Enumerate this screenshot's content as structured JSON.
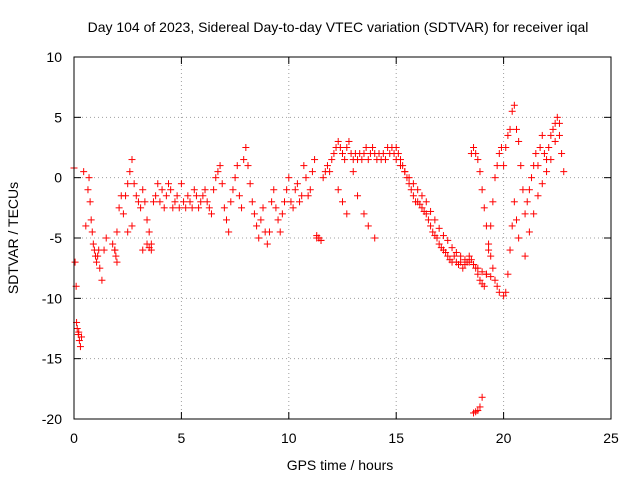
{
  "chart_data": {
    "type": "scatter",
    "title": "Day 104 of 2023, Sidereal Day-to-day VTEC variation (SDTVAR) for receiver iqal",
    "xlabel": "GPS time / hours",
    "ylabel": "SDTVAR / TECUs",
    "xlim": [
      0,
      25
    ],
    "ylim": [
      -20,
      10
    ],
    "xticks": [
      0,
      5,
      10,
      15,
      20,
      25
    ],
    "xtick_labels": [
      "0",
      "5",
      "10",
      "15",
      "20",
      "25"
    ],
    "yticks": [
      -20,
      -15,
      -10,
      -5,
      0,
      5,
      10
    ],
    "ytick_labels": [
      "-20",
      "-15",
      "-10",
      "-5",
      "0",
      "5",
      "10"
    ],
    "grid": true,
    "marker": "+",
    "series": [
      {
        "name": "SDTVAR",
        "color": "#ff0000",
        "x": [
          0.0,
          0.05,
          0.1,
          0.12,
          0.15,
          0.2,
          0.22,
          0.25,
          0.3,
          0.35,
          0.45,
          0.55,
          0.65,
          0.7,
          0.75,
          0.8,
          0.85,
          0.9,
          0.95,
          1.0,
          1.05,
          1.1,
          1.15,
          1.2,
          1.3,
          1.4,
          1.5,
          1.8,
          1.9,
          2.0,
          2.1,
          2.2,
          2.3,
          2.4,
          2.5,
          2.6,
          2.7,
          2.8,
          2.9,
          3.0,
          3.1,
          3.2,
          3.3,
          3.4,
          3.5,
          3.6,
          3.7,
          3.8,
          3.9,
          4.0,
          4.1,
          4.2,
          4.3,
          4.4,
          4.5,
          4.6,
          4.7,
          4.8,
          4.9,
          5.0,
          5.1,
          5.2,
          5.3,
          5.4,
          5.5,
          5.6,
          5.7,
          5.8,
          5.9,
          6.0,
          6.1,
          6.2,
          6.3,
          6.4,
          6.5,
          6.6,
          6.7,
          6.8,
          6.9,
          7.0,
          7.1,
          7.2,
          7.3,
          7.4,
          7.5,
          7.6,
          7.7,
          7.8,
          7.9,
          8.0,
          8.1,
          8.2,
          8.3,
          8.4,
          8.5,
          8.6,
          8.7,
          8.8,
          8.9,
          9.0,
          9.1,
          9.2,
          9.3,
          9.4,
          9.5,
          9.6,
          9.7,
          9.8,
          9.9,
          10.0,
          10.1,
          10.2,
          10.3,
          10.4,
          10.5,
          10.6,
          10.7,
          10.8,
          10.9,
          11.0,
          11.1,
          11.2,
          11.3,
          11.4,
          11.5,
          11.6,
          11.7,
          11.8,
          11.9,
          12.0,
          12.1,
          12.2,
          12.3,
          12.4,
          12.5,
          12.6,
          12.7,
          12.8,
          12.9,
          13.0,
          13.1,
          13.2,
          13.3,
          13.4,
          13.5,
          13.6,
          13.7,
          13.8,
          13.9,
          14.0,
          14.1,
          14.2,
          14.3,
          14.4,
          14.5,
          14.6,
          14.7,
          14.8,
          14.9,
          15.0,
          15.1,
          15.2,
          15.3,
          15.4,
          15.5,
          15.6,
          15.7,
          15.8,
          15.9,
          16.0,
          16.1,
          16.2,
          16.3,
          16.4,
          16.5,
          16.6,
          16.7,
          16.8,
          16.9,
          17.0,
          17.1,
          17.2,
          17.3,
          17.4,
          17.5,
          17.6,
          17.7,
          17.8,
          17.9,
          18.0,
          18.1,
          18.2,
          18.3,
          18.4,
          18.5,
          18.6,
          18.7,
          18.8,
          18.9,
          19.0,
          19.1,
          19.2,
          19.3,
          19.4,
          19.5,
          19.6,
          19.7,
          19.8,
          19.9,
          20.0,
          20.1,
          20.2,
          20.3,
          20.4,
          20.5,
          20.6,
          20.7,
          20.8,
          20.9,
          21.0,
          21.1,
          21.2,
          21.3,
          21.4,
          21.5,
          21.6,
          21.7,
          21.8,
          21.9,
          22.0,
          22.1,
          22.2,
          22.3,
          22.4,
          22.5,
          22.6,
          22.7,
          22.8,
          15.0,
          15.2,
          15.4,
          15.6,
          15.8,
          16.0,
          16.2,
          16.4,
          16.6,
          16.8,
          17.0,
          17.2,
          17.4,
          17.6,
          17.8,
          18.0,
          18.2,
          18.4,
          18.6,
          18.8,
          19.0,
          19.2,
          19.4,
          18.6,
          18.7,
          18.8,
          18.9,
          19.0,
          18.5,
          18.6,
          18.7,
          18.8,
          18.9,
          19.0,
          19.1,
          19.2,
          19.3,
          19.4,
          19.5,
          19.6,
          19.7,
          19.8,
          20.0,
          20.1,
          20.2,
          20.3,
          20.4,
          20.5,
          20.6,
          20.7,
          21.0,
          21.2,
          21.4,
          21.6,
          21.8,
          22.0,
          22.2,
          22.4,
          22.6,
          12.3,
          12.5,
          12.7,
          13.0,
          13.2,
          13.5,
          13.7,
          14.0,
          11.3,
          11.4,
          11.5,
          3.2,
          3.4,
          3.5,
          3.6,
          2.5,
          2.7,
          1.9,
          1.95,
          2.0
        ],
        "y": [
          0.8,
          -7.0,
          -9.0,
          -12.0,
          -12.5,
          -13.0,
          -12.8,
          -13.5,
          -14.0,
          -13.2,
          0.5,
          -4.0,
          -1.0,
          0.0,
          -2.0,
          -3.5,
          -4.5,
          -5.5,
          -6.0,
          -6.5,
          -7.0,
          -6.5,
          -6.0,
          -7.5,
          -8.5,
          -6.0,
          -5.0,
          -5.5,
          -6.0,
          -4.5,
          -2.5,
          -1.5,
          -3.0,
          -1.5,
          -0.5,
          0.5,
          1.5,
          -0.5,
          -1.5,
          -2.0,
          -2.5,
          -1.0,
          -2.0,
          -3.5,
          -4.5,
          -5.5,
          -2.0,
          -1.5,
          -0.5,
          -2.0,
          -1.0,
          -2.5,
          -1.5,
          -0.5,
          -1.0,
          -2.5,
          -2.0,
          -1.5,
          -2.5,
          -0.5,
          -2.0,
          -2.5,
          -1.5,
          -2.0,
          -2.5,
          -1.0,
          -1.5,
          -2.5,
          -2.0,
          -1.5,
          -1.0,
          -2.0,
          -2.5,
          -3.0,
          -1.0,
          0.0,
          0.5,
          1.0,
          -0.5,
          -2.5,
          -3.5,
          -4.5,
          -2.0,
          -1.0,
          0.0,
          1.0,
          -1.5,
          -2.5,
          1.5,
          2.5,
          1.0,
          -0.5,
          -2.0,
          -3.0,
          -4.0,
          -5.0,
          -3.5,
          -2.5,
          -4.5,
          -5.5,
          -4.5,
          -2.0,
          -1.0,
          -2.5,
          -3.5,
          -4.5,
          -3.0,
          -2.0,
          -1.0,
          0.0,
          -2.0,
          -2.5,
          -1.0,
          -0.5,
          -2.0,
          -1.5,
          1.0,
          0.0,
          -1.5,
          -1.0,
          0.5,
          1.5,
          -5.0,
          -5.0,
          -5.2,
          0.0,
          0.5,
          1.0,
          0.5,
          1.5,
          2.0,
          2.5,
          3.0,
          2.5,
          2.0,
          1.5,
          2.5,
          3.0,
          2.0,
          1.5,
          2.0,
          1.5,
          2.0,
          1.5,
          2.0,
          2.5,
          1.5,
          2.0,
          2.5,
          2.0,
          1.5,
          2.0,
          1.5,
          2.0,
          1.5,
          2.5,
          2.0,
          2.5,
          2.0,
          2.5,
          2.0,
          1.5,
          1.0,
          0.5,
          0.0,
          -0.5,
          -1.0,
          -1.5,
          -2.0,
          -2.0,
          -2.2,
          -2.5,
          -2.8,
          -3.0,
          -3.5,
          -4.0,
          -4.5,
          -4.8,
          -5.0,
          -5.5,
          -5.8,
          -6.0,
          -6.2,
          -6.5,
          -6.8,
          -7.0,
          -6.5,
          -7.0,
          -7.2,
          -7.0,
          -7.5,
          -7.2,
          -7.0,
          -6.5,
          -6.8,
          -7.2,
          -7.5,
          -8.0,
          -8.5,
          -8.8,
          -9.0,
          -8.0,
          -6.0,
          -4.0,
          -2.0,
          0.0,
          1.0,
          2.0,
          2.5,
          1.0,
          2.5,
          3.5,
          4.0,
          5.5,
          6.0,
          4.0,
          3.0,
          1.0,
          -1.0,
          -3.0,
          -2.0,
          -1.0,
          0.0,
          1.0,
          2.0,
          1.0,
          2.5,
          3.5,
          2.0,
          1.5,
          2.5,
          3.5,
          4.0,
          4.5,
          5.0,
          3.5,
          2.0,
          0.5,
          1.5,
          1.0,
          0.5,
          0.0,
          -0.5,
          -1.0,
          -1.5,
          -2.0,
          -2.8,
          -3.5,
          -4.2,
          -4.8,
          -5.2,
          -5.8,
          -6.2,
          -6.5,
          -6.8,
          -7.0,
          -7.2,
          -7.5,
          -7.8,
          -8.0,
          -8.2,
          -19.5,
          -19.4,
          -19.3,
          -19.0,
          -18.2,
          2.0,
          2.5,
          2.0,
          1.5,
          0.5,
          -1.0,
          -2.5,
          -4.0,
          -5.5,
          -6.5,
          -7.5,
          -8.5,
          -9.0,
          -9.5,
          -9.8,
          -9.5,
          -8.0,
          -6.0,
          -4.0,
          -2.0,
          -3.5,
          -5.0,
          -6.5,
          -4.5,
          -3.0,
          -1.5,
          -0.5,
          0.5,
          1.5,
          3.0,
          4.5,
          -1.0,
          -2.0,
          -3.0,
          0.5,
          -1.5,
          -3.0,
          -4.0,
          -5.0,
          -4.8,
          -5.0,
          -5.2,
          -6.0,
          -5.5,
          -5.8,
          -6.0,
          -4.5,
          -4.0,
          -6.0,
          -6.5,
          -7.0
        ]
      }
    ]
  }
}
